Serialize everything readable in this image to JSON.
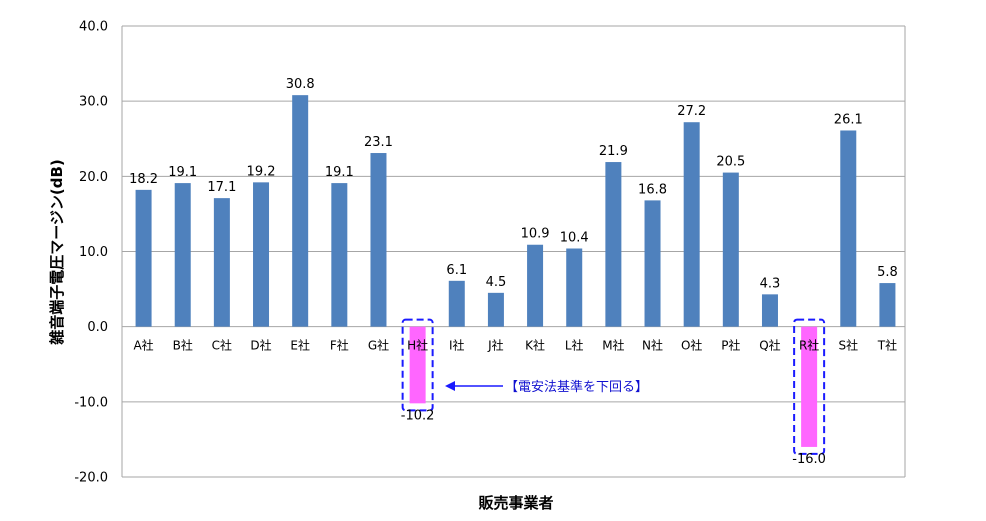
{
  "chart_data": {
    "type": "bar",
    "xlabel": "販売事業者",
    "ylabel": "雑音端子電圧マージン(dB)",
    "ylim": [
      -20,
      40
    ],
    "yticks": [
      "40.0",
      "30.0",
      "20.0",
      "10.0",
      "0.0",
      "-10.0",
      "-20.0"
    ],
    "grid": true,
    "categories": [
      "A社",
      "B社",
      "C社",
      "D社",
      "E社",
      "F社",
      "G社",
      "H社",
      "I社",
      "J社",
      "K社",
      "L社",
      "M社",
      "N社",
      "O社",
      "P社",
      "Q社",
      "R社",
      "S社",
      "T社"
    ],
    "values": [
      18.2,
      19.1,
      17.1,
      19.2,
      30.8,
      19.1,
      23.1,
      -10.2,
      6.1,
      4.5,
      10.9,
      10.4,
      21.9,
      16.8,
      27.2,
      20.5,
      4.3,
      -16.0,
      26.1,
      5.8
    ],
    "value_labels": [
      "18.2",
      "19.1",
      "17.1",
      "19.2",
      "30.8",
      "19.1",
      "23.1",
      "-10.2",
      "6.1",
      "4.5",
      "10.9",
      "10.4",
      "21.9",
      "16.8",
      "27.2",
      "20.5",
      "4.3",
      "-16.0",
      "26.1",
      "5.8"
    ],
    "colors": {
      "positive": "#4f81bd",
      "negative": "#ff66ff",
      "highlight_box": "#1a1aff",
      "grid": "#a6a6a6"
    },
    "highlighted": [
      "H社",
      "R社"
    ],
    "annotation": {
      "text": "【電安法基準を下回る】",
      "target": "H社"
    }
  }
}
